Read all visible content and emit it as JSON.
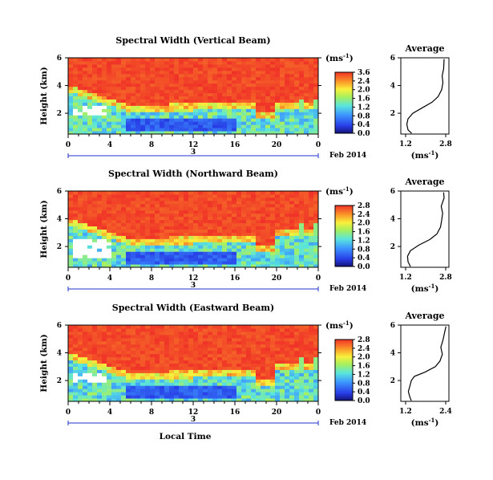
{
  "chart_data": [
    {
      "type": "heatmap",
      "title": "Spectral Width (Vertical Beam)",
      "ylabel": "Height (km)",
      "x_ticks": [
        "0",
        "4",
        "8",
        "12",
        "16",
        "20",
        "0"
      ],
      "y_ticks": [
        "2",
        "4",
        "6"
      ],
      "xlim": [
        0,
        24
      ],
      "ylim": [
        0.5,
        6
      ],
      "date_tick": "3",
      "date_label": "Feb 2014",
      "colorbar": {
        "unit": "(ms",
        "unit_sup": "-1",
        "unit_close": ")",
        "ticks": [
          "3.6",
          "2.4",
          "2.0",
          "1.6",
          "1.2",
          "0.8",
          "0.4",
          "0.0"
        ]
      },
      "profile": {
        "title": "Average",
        "x_ticks": [
          "1.2",
          "2.8"
        ],
        "y_ticks": [
          "2",
          "4",
          "6"
        ],
        "xlabel": "(ms",
        "xlabel_sup": "-1",
        "xlabel_close": ")",
        "xlim": [
          1.0,
          3.0
        ],
        "points": [
          [
            1.45,
            0.55
          ],
          [
            1.3,
            0.8
          ],
          [
            1.25,
            1.2
          ],
          [
            1.3,
            1.6
          ],
          [
            1.5,
            2.0
          ],
          [
            1.9,
            2.4
          ],
          [
            2.3,
            2.8
          ],
          [
            2.55,
            3.2
          ],
          [
            2.7,
            3.7
          ],
          [
            2.75,
            4.2
          ],
          [
            2.72,
            4.7
          ],
          [
            2.78,
            5.2
          ],
          [
            2.8,
            5.9
          ]
        ]
      }
    },
    {
      "type": "heatmap",
      "title": "Spectral Width (Northward Beam)",
      "ylabel": "Height (km)",
      "x_ticks": [
        "0",
        "4",
        "8",
        "12",
        "16",
        "20",
        "0"
      ],
      "y_ticks": [
        "2",
        "4",
        "6"
      ],
      "xlim": [
        0,
        24
      ],
      "ylim": [
        0.5,
        6
      ],
      "date_tick": "3",
      "date_label": "Feb 2014",
      "colorbar": {
        "unit": "(ms",
        "unit_sup": "-1",
        "unit_close": ")",
        "ticks": [
          "2.8",
          "2.4",
          "2.0",
          "1.6",
          "1.2",
          "0.8",
          "0.4",
          "0.0"
        ]
      },
      "profile": {
        "title": "Average",
        "x_ticks": [
          "1.2",
          "2.8"
        ],
        "y_ticks": [
          "2",
          "4",
          "6"
        ],
        "xlabel": "(ms",
        "xlabel_sup": "-1",
        "xlabel_close": ")",
        "xlim": [
          1.0,
          3.0
        ],
        "points": [
          [
            1.4,
            0.55
          ],
          [
            1.3,
            0.9
          ],
          [
            1.28,
            1.3
          ],
          [
            1.4,
            1.7
          ],
          [
            1.75,
            2.1
          ],
          [
            2.2,
            2.5
          ],
          [
            2.5,
            2.9
          ],
          [
            2.65,
            3.4
          ],
          [
            2.7,
            3.9
          ],
          [
            2.74,
            4.4
          ],
          [
            2.68,
            4.9
          ],
          [
            2.8,
            5.5
          ],
          [
            2.78,
            5.9
          ]
        ]
      }
    },
    {
      "type": "heatmap",
      "title": "Spectral Width (Eastward Beam)",
      "ylabel": "Height (km)",
      "x_ticks": [
        "0",
        "4",
        "8",
        "12",
        "16",
        "20",
        "0"
      ],
      "y_ticks": [
        "2",
        "4",
        "6"
      ],
      "xlim": [
        0,
        24
      ],
      "ylim": [
        0.5,
        6
      ],
      "date_tick": "3",
      "date_label": "Feb 2014",
      "xlabel": "Local Time",
      "colorbar": {
        "unit": "(ms",
        "unit_sup": "-1",
        "unit_close": ")",
        "ticks": [
          "2.8",
          "2.4",
          "2.0",
          "1.6",
          "1.2",
          "0.8",
          "0.4",
          "0.0"
        ]
      },
      "profile": {
        "title": "Average",
        "x_ticks": [
          "1.2",
          "2.4"
        ],
        "y_ticks": [
          "2",
          "4",
          "6"
        ],
        "xlabel": "(ms",
        "xlabel_sup": "-1",
        "xlabel_close": ")",
        "xlim": [
          1.0,
          2.6
        ],
        "points": [
          [
            1.35,
            0.55
          ],
          [
            1.3,
            0.8
          ],
          [
            1.25,
            1.2
          ],
          [
            1.3,
            1.6
          ],
          [
            1.35,
            2.0
          ],
          [
            1.45,
            2.3
          ],
          [
            1.8,
            2.6
          ],
          [
            2.15,
            3.0
          ],
          [
            2.3,
            3.4
          ],
          [
            2.38,
            3.9
          ],
          [
            2.33,
            4.4
          ],
          [
            2.4,
            4.9
          ],
          [
            2.45,
            5.4
          ],
          [
            2.5,
            5.9
          ]
        ]
      }
    }
  ]
}
